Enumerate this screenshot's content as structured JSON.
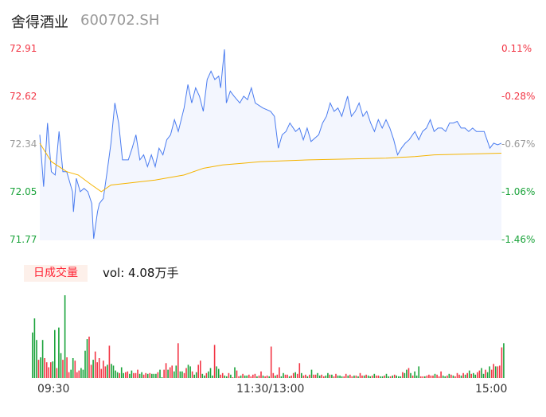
{
  "header": {
    "name": "舍得酒业",
    "code": "600702.SH"
  },
  "chart_data": {
    "type": "line",
    "price_ticks": [
      "72.91",
      "72.62",
      "72.34",
      "72.05",
      "71.77"
    ],
    "pct_ticks": [
      "0.11%",
      "-0.28%",
      "-0.67%",
      "-1.06%",
      "-1.46%"
    ],
    "ylim": [
      71.77,
      72.91
    ],
    "xlim": [
      0,
      240
    ],
    "x_ticks": [
      "09:30",
      "11:30/13:00",
      "15:00"
    ],
    "colors": {
      "price": "#4a7cf0",
      "avg": "#f5b400",
      "up": "#f23645",
      "down": "#1aa33a",
      "pos_label": "#f23645",
      "neg_label": "#1aa33a",
      "neutral_label": "#999999"
    },
    "price": [
      [
        0,
        72.4
      ],
      [
        2,
        72.09
      ],
      [
        4,
        72.47
      ],
      [
        6,
        72.18
      ],
      [
        8,
        72.16
      ],
      [
        10,
        72.42
      ],
      [
        12,
        72.18
      ],
      [
        14,
        72.18
      ],
      [
        17,
        72.06
      ],
      [
        17.5,
        71.94
      ],
      [
        19,
        72.14
      ],
      [
        21,
        72.06
      ],
      [
        23,
        72.08
      ],
      [
        25,
        72.06
      ],
      [
        27,
        71.99
      ],
      [
        28,
        71.78
      ],
      [
        30,
        71.94
      ],
      [
        31,
        71.99
      ],
      [
        33,
        72.02
      ],
      [
        35,
        72.18
      ],
      [
        37,
        72.35
      ],
      [
        39,
        72.59
      ],
      [
        41,
        72.47
      ],
      [
        43,
        72.25
      ],
      [
        46,
        72.25
      ],
      [
        48,
        72.32
      ],
      [
        50,
        72.4
      ],
      [
        52,
        72.25
      ],
      [
        54,
        72.28
      ],
      [
        56,
        72.21
      ],
      [
        58,
        72.28
      ],
      [
        60,
        72.21
      ],
      [
        62,
        72.32
      ],
      [
        64,
        72.28
      ],
      [
        66,
        72.37
      ],
      [
        68,
        72.4
      ],
      [
        70,
        72.49
      ],
      [
        72,
        72.42
      ],
      [
        75,
        72.56
      ],
      [
        77,
        72.7
      ],
      [
        79,
        72.59
      ],
      [
        81,
        72.68
      ],
      [
        83,
        72.63
      ],
      [
        85,
        72.54
      ],
      [
        87,
        72.73
      ],
      [
        89,
        72.78
      ],
      [
        91,
        72.73
      ],
      [
        93,
        72.75
      ],
      [
        94,
        72.68
      ],
      [
        96,
        72.91
      ],
      [
        97,
        72.59
      ],
      [
        99,
        72.66
      ],
      [
        101,
        72.63
      ],
      [
        104,
        72.59
      ],
      [
        106,
        72.63
      ],
      [
        108,
        72.61
      ],
      [
        110,
        72.68
      ],
      [
        112,
        72.59
      ],
      [
        116,
        72.56
      ],
      [
        120,
        72.54
      ],
      [
        122,
        72.51
      ],
      [
        124,
        72.32
      ],
      [
        126,
        72.4
      ],
      [
        128,
        72.42
      ],
      [
        130,
        72.47
      ],
      [
        133,
        72.42
      ],
      [
        135,
        72.44
      ],
      [
        137,
        72.37
      ],
      [
        139,
        72.44
      ],
      [
        141,
        72.36
      ],
      [
        145,
        72.4
      ],
      [
        147,
        72.47
      ],
      [
        149,
        72.51
      ],
      [
        151,
        72.59
      ],
      [
        153,
        72.54
      ],
      [
        155,
        72.56
      ],
      [
        157,
        72.51
      ],
      [
        160,
        72.63
      ],
      [
        162,
        72.51
      ],
      [
        164,
        72.54
      ],
      [
        166,
        72.59
      ],
      [
        168,
        72.51
      ],
      [
        170,
        72.54
      ],
      [
        172,
        72.47
      ],
      [
        174,
        72.42
      ],
      [
        176,
        72.49
      ],
      [
        178,
        72.44
      ],
      [
        180,
        72.49
      ],
      [
        182,
        72.44
      ],
      [
        184,
        72.37
      ],
      [
        186,
        72.28
      ],
      [
        188,
        72.32
      ],
      [
        190,
        72.35
      ],
      [
        192,
        72.37
      ],
      [
        195,
        72.42
      ],
      [
        197,
        72.37
      ],
      [
        199,
        72.42
      ],
      [
        201,
        72.44
      ],
      [
        203,
        72.49
      ],
      [
        205,
        72.42
      ],
      [
        207,
        72.44
      ],
      [
        209,
        72.44
      ],
      [
        211,
        72.42
      ],
      [
        213,
        72.47
      ],
      [
        215,
        72.47
      ],
      [
        217,
        72.48
      ],
      [
        219,
        72.44
      ],
      [
        221,
        72.44
      ],
      [
        223,
        72.42
      ],
      [
        225,
        72.44
      ],
      [
        227,
        72.42
      ],
      [
        229,
        72.42
      ],
      [
        231,
        72.42
      ],
      [
        234,
        72.32
      ],
      [
        236,
        72.35
      ],
      [
        238,
        72.34
      ],
      [
        240,
        72.35
      ]
    ],
    "avg": [
      [
        0,
        72.35
      ],
      [
        6,
        72.24
      ],
      [
        10,
        72.21
      ],
      [
        14,
        72.18
      ],
      [
        20,
        72.16
      ],
      [
        27,
        72.1
      ],
      [
        32,
        72.06
      ],
      [
        37,
        72.1
      ],
      [
        45,
        72.11
      ],
      [
        60,
        72.13
      ],
      [
        75,
        72.16
      ],
      [
        85,
        72.2
      ],
      [
        95,
        72.22
      ],
      [
        105,
        72.23
      ],
      [
        115,
        72.24
      ],
      [
        140,
        72.25
      ],
      [
        180,
        72.26
      ],
      [
        195,
        72.27
      ],
      [
        205,
        72.28
      ],
      [
        240,
        72.29
      ]
    ],
    "volume": {
      "label": "日成交量",
      "text": "vol: 4.08万手",
      "bars": [
        [
          55,
          "g"
        ],
        [
          72,
          "g"
        ],
        [
          46,
          "g"
        ],
        [
          22,
          "r"
        ],
        [
          25,
          "g"
        ],
        [
          46,
          "g"
        ],
        [
          24,
          "r"
        ],
        [
          19,
          "r"
        ],
        [
          13,
          "r"
        ],
        [
          19,
          "r"
        ],
        [
          20,
          "g"
        ],
        [
          58,
          "g"
        ],
        [
          12,
          "r"
        ],
        [
          61,
          "g"
        ],
        [
          30,
          "g"
        ],
        [
          22,
          "r"
        ],
        [
          100,
          "g"
        ],
        [
          25,
          "r"
        ],
        [
          7,
          "r"
        ],
        [
          10,
          "g"
        ],
        [
          24,
          "g"
        ],
        [
          21,
          "r"
        ],
        [
          7,
          "r"
        ],
        [
          9,
          "r"
        ],
        [
          12,
          "g"
        ],
        [
          10,
          "g"
        ],
        [
          33,
          "g"
        ],
        [
          47,
          "g"
        ],
        [
          50,
          "r"
        ],
        [
          16,
          "r"
        ],
        [
          22,
          "g"
        ],
        [
          32,
          "r"
        ],
        [
          19,
          "r"
        ],
        [
          24,
          "r"
        ],
        [
          11,
          "r"
        ],
        [
          21,
          "r"
        ],
        [
          14,
          "r"
        ],
        [
          16,
          "g"
        ],
        [
          39,
          "r"
        ],
        [
          17,
          "g"
        ],
        [
          15,
          "g"
        ],
        [
          9,
          "g"
        ],
        [
          7,
          "g"
        ],
        [
          6,
          "r"
        ],
        [
          13,
          "g"
        ],
        [
          6,
          "g"
        ],
        [
          7,
          "r"
        ],
        [
          8,
          "r"
        ],
        [
          5,
          "g"
        ],
        [
          9,
          "g"
        ],
        [
          6,
          "r"
        ],
        [
          6,
          "r"
        ],
        [
          10,
          "r"
        ],
        [
          5,
          "g"
        ],
        [
          7,
          "g"
        ],
        [
          4,
          "r"
        ],
        [
          6,
          "r"
        ],
        [
          5,
          "g"
        ],
        [
          6,
          "r"
        ],
        [
          5,
          "g"
        ],
        [
          5,
          "g"
        ],
        [
          5,
          "g"
        ],
        [
          7,
          "r"
        ],
        [
          10,
          "g"
        ],
        [
          1,
          "g"
        ],
        [
          10,
          "r"
        ],
        [
          18,
          "r"
        ],
        [
          10,
          "g"
        ],
        [
          13,
          "r"
        ],
        [
          15,
          "r"
        ],
        [
          8,
          "g"
        ],
        [
          15,
          "g"
        ],
        [
          42,
          "r"
        ],
        [
          8,
          "g"
        ],
        [
          8,
          "g"
        ],
        [
          6,
          "r"
        ],
        [
          12,
          "r"
        ],
        [
          16,
          "g"
        ],
        [
          14,
          "g"
        ],
        [
          8,
          "r"
        ],
        [
          4,
          "g"
        ],
        [
          7,
          "g"
        ],
        [
          16,
          "r"
        ],
        [
          21,
          "r"
        ],
        [
          5,
          "g"
        ],
        [
          3,
          "g"
        ],
        [
          6,
          "r"
        ],
        [
          8,
          "g"
        ],
        [
          12,
          "g"
        ],
        [
          3,
          "g"
        ],
        [
          40,
          "r"
        ],
        [
          14,
          "g"
        ],
        [
          11,
          "g"
        ],
        [
          4,
          "r"
        ],
        [
          6,
          "r"
        ],
        [
          3,
          "g"
        ],
        [
          2,
          "g"
        ],
        [
          6,
          "r"
        ],
        [
          4,
          "g"
        ],
        [
          1,
          "r"
        ],
        [
          13,
          "g"
        ],
        [
          9,
          "r"
        ],
        [
          2,
          "r"
        ],
        [
          3,
          "g"
        ],
        [
          5,
          "r"
        ],
        [
          3,
          "g"
        ],
        [
          3,
          "g"
        ],
        [
          4,
          "r"
        ],
        [
          2,
          "r"
        ],
        [
          4,
          "r"
        ],
        [
          5,
          "r"
        ],
        [
          2,
          "g"
        ],
        [
          3,
          "r"
        ],
        [
          8,
          "r"
        ],
        [
          3,
          "g"
        ],
        [
          2,
          "r"
        ],
        [
          3,
          "r"
        ],
        [
          2,
          "g"
        ],
        [
          38,
          "r"
        ],
        [
          6,
          "r"
        ],
        [
          3,
          "g"
        ],
        [
          4,
          "r"
        ],
        [
          13,
          "r"
        ],
        [
          2,
          "g"
        ],
        [
          6,
          "g"
        ],
        [
          4,
          "r"
        ],
        [
          4,
          "r"
        ],
        [
          2,
          "g"
        ],
        [
          3,
          "r"
        ],
        [
          6,
          "r"
        ],
        [
          7,
          "g"
        ],
        [
          5,
          "r"
        ],
        [
          18,
          "r"
        ],
        [
          6,
          "g"
        ],
        [
          3,
          "r"
        ],
        [
          4,
          "r"
        ],
        [
          2,
          "g"
        ],
        [
          4,
          "r"
        ],
        [
          10,
          "g"
        ],
        [
          4,
          "r"
        ],
        [
          4,
          "r"
        ],
        [
          6,
          "g"
        ],
        [
          3,
          "g"
        ],
        [
          4,
          "r"
        ],
        [
          2,
          "r"
        ],
        [
          3,
          "g"
        ],
        [
          6,
          "g"
        ],
        [
          4,
          "r"
        ],
        [
          4,
          "g"
        ],
        [
          2,
          "r"
        ],
        [
          5,
          "r"
        ],
        [
          3,
          "g"
        ],
        [
          3,
          "g"
        ],
        [
          2,
          "g"
        ],
        [
          2,
          "r"
        ],
        [
          5,
          "r"
        ],
        [
          3,
          "g"
        ],
        [
          4,
          "r"
        ],
        [
          2,
          "r"
        ],
        [
          3,
          "g"
        ],
        [
          3,
          "r"
        ],
        [
          2,
          "g"
        ],
        [
          6,
          "r"
        ],
        [
          3,
          "r"
        ],
        [
          3,
          "g"
        ],
        [
          4,
          "r"
        ],
        [
          3,
          "g"
        ],
        [
          2,
          "g"
        ],
        [
          3,
          "r"
        ],
        [
          5,
          "g"
        ],
        [
          3,
          "r"
        ],
        [
          3,
          "r"
        ],
        [
          2,
          "g"
        ],
        [
          2,
          "g"
        ],
        [
          3,
          "r"
        ],
        [
          5,
          "g"
        ],
        [
          2,
          "g"
        ],
        [
          2,
          "r"
        ],
        [
          3,
          "g"
        ],
        [
          4,
          "r"
        ],
        [
          3,
          "g"
        ],
        [
          2,
          "g"
        ],
        [
          2,
          "g"
        ],
        [
          7,
          "r"
        ],
        [
          6,
          "g"
        ],
        [
          10,
          "g"
        ],
        [
          12,
          "r"
        ],
        [
          6,
          "g"
        ],
        [
          3,
          "r"
        ],
        [
          8,
          "g"
        ],
        [
          3,
          "g"
        ],
        [
          14,
          "g"
        ],
        [
          2,
          "r"
        ],
        [
          2,
          "r"
        ],
        [
          2,
          "g"
        ],
        [
          3,
          "r"
        ],
        [
          4,
          "r"
        ],
        [
          3,
          "r"
        ],
        [
          3,
          "r"
        ],
        [
          5,
          "g"
        ],
        [
          4,
          "r"
        ],
        [
          2,
          "r"
        ],
        [
          8,
          "r"
        ],
        [
          3,
          "g"
        ],
        [
          2,
          "g"
        ],
        [
          3,
          "r"
        ],
        [
          5,
          "g"
        ],
        [
          4,
          "r"
        ],
        [
          3,
          "g"
        ],
        [
          2,
          "r"
        ],
        [
          6,
          "r"
        ],
        [
          4,
          "r"
        ],
        [
          3,
          "g"
        ],
        [
          6,
          "r"
        ],
        [
          4,
          "g"
        ],
        [
          6,
          "r"
        ],
        [
          9,
          "g"
        ],
        [
          5,
          "r"
        ],
        [
          6,
          "g"
        ],
        [
          4,
          "g"
        ],
        [
          7,
          "r"
        ],
        [
          9,
          "r"
        ],
        [
          12,
          "g"
        ],
        [
          5,
          "g"
        ],
        [
          10,
          "r"
        ],
        [
          7,
          "g"
        ],
        [
          14,
          "g"
        ],
        [
          10,
          "r"
        ],
        [
          17,
          "r"
        ],
        [
          14,
          "g"
        ],
        [
          14,
          "r"
        ],
        [
          15,
          "r"
        ],
        [
          37,
          "r"
        ],
        [
          42,
          "g"
        ]
      ]
    }
  }
}
